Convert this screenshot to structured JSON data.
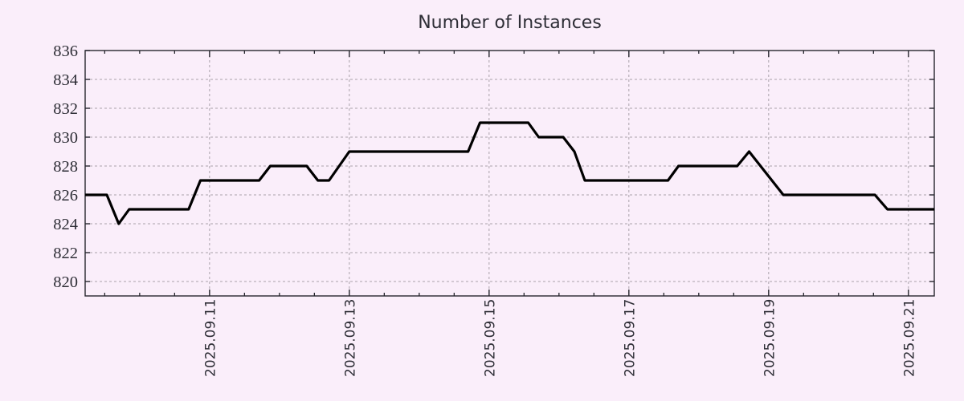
{
  "chart_data": {
    "type": "line",
    "title": "Number of Instances",
    "legend": false,
    "x_axis": {
      "label": "",
      "unit": "days relative to 2025.09.11",
      "domain": [
        -1.78,
        10.37
      ],
      "minor_tick_step": 0.5,
      "major_ticks": [
        {
          "pos": 0,
          "label": "2025.09.11"
        },
        {
          "pos": 2,
          "label": "2025.09.13"
        },
        {
          "pos": 4,
          "label": "2025.09.15"
        },
        {
          "pos": 6,
          "label": "2025.09.17"
        },
        {
          "pos": 8,
          "label": "2025.09.19"
        },
        {
          "pos": 10,
          "label": "2025.09.21"
        }
      ],
      "grid_on_major": true
    },
    "y_axis": {
      "label": "",
      "domain": [
        819,
        836
      ],
      "ticks": [
        820,
        822,
        824,
        826,
        828,
        830,
        832,
        834,
        836
      ],
      "grid": true
    },
    "series": [
      {
        "name": "instances",
        "color": "#000000",
        "points": [
          [
            -1.78,
            826
          ],
          [
            -1.47,
            826
          ],
          [
            -1.3,
            824
          ],
          [
            -1.15,
            825
          ],
          [
            -0.3,
            825
          ],
          [
            -0.13,
            827
          ],
          [
            0.71,
            827
          ],
          [
            0.87,
            828
          ],
          [
            1.39,
            828
          ],
          [
            1.55,
            827
          ],
          [
            1.71,
            827
          ],
          [
            2.0,
            829
          ],
          [
            3.7,
            829
          ],
          [
            3.87,
            831
          ],
          [
            4.56,
            831
          ],
          [
            4.71,
            830
          ],
          [
            5.06,
            830
          ],
          [
            5.22,
            829
          ],
          [
            5.37,
            827
          ],
          [
            6.56,
            827
          ],
          [
            6.71,
            828
          ],
          [
            7.55,
            828
          ],
          [
            7.72,
            829
          ],
          [
            8.21,
            826
          ],
          [
            9.52,
            826
          ],
          [
            9.7,
            825
          ],
          [
            10.37,
            825
          ]
        ]
      }
    ],
    "style": {
      "background": "#faeefa",
      "plot_background": "#faeefa",
      "grid_color": "#a9a2aa",
      "axis_color": "#26262e",
      "text_color": "#2e2e36",
      "line_width": 3.2
    }
  }
}
